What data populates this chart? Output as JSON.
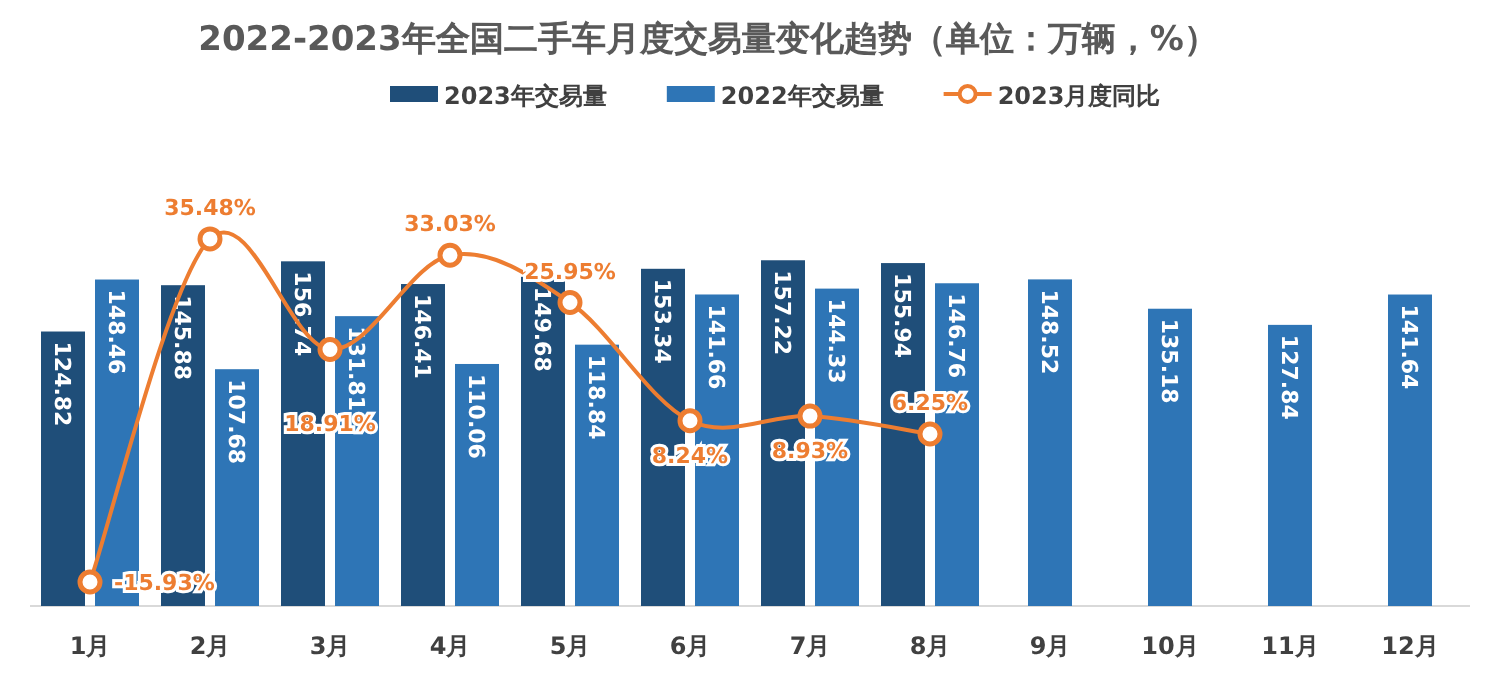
{
  "chart_data": {
    "type": "bar",
    "title": "2022-2023年全国二手车月度交易量变化趋势（单位：万辆，%）",
    "categories": [
      "1月",
      "2月",
      "3月",
      "4月",
      "5月",
      "6月",
      "7月",
      "8月",
      "9月",
      "10月",
      "11月",
      "12月"
    ],
    "relative": false,
    "data_labels": true,
    "legend": "top",
    "marker": "circle",
    "line_style": "solid",
    "series": [
      {
        "name": "2023年交易量",
        "color": "#1f4e79",
        "values": [
          124.82,
          145.88,
          156.74,
          146.41,
          149.68,
          153.34,
          157.22,
          155.94,
          null,
          null,
          null,
          null
        ]
      },
      {
        "name": "2022年交易量",
        "color": "#2e75b6",
        "values": [
          148.46,
          107.68,
          131.81,
          110.06,
          118.84,
          141.66,
          144.33,
          146.76,
          148.52,
          135.18,
          127.84,
          141.64
        ]
      },
      {
        "name": "2023月度同比",
        "type": "line",
        "axis": "y2",
        "color": "#ed7d31",
        "values": [
          -15.93,
          35.48,
          18.91,
          33.03,
          25.95,
          8.24,
          8.93,
          6.25,
          null,
          null,
          null,
          null
        ],
        "value_labels": [
          "-15.93%",
          "35.48%",
          "18.91%",
          "33.03%",
          "25.95%",
          "8.24%",
          "8.93%",
          "6.25%",
          null,
          null,
          null,
          null
        ]
      }
    ]
  }
}
